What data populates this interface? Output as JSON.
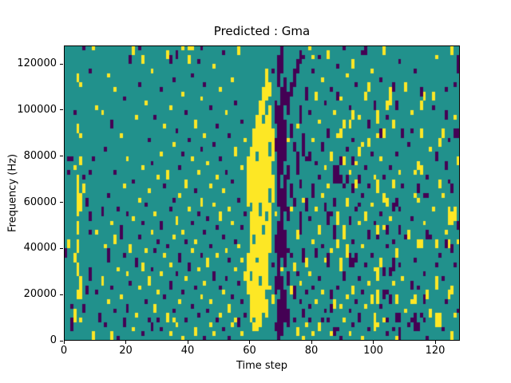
{
  "figure": {
    "title": "Predicted : Gma",
    "background": "#ffffff"
  },
  "chart_data": {
    "type": "heatmap",
    "title": "Predicted : Gma",
    "xlabel": "Time step",
    "ylabel": "Frequency (Hz)",
    "xlim": [
      0,
      128
    ],
    "ylim": [
      0,
      128000
    ],
    "xticks": [
      0,
      20,
      40,
      60,
      80,
      100,
      120
    ],
    "yticks": [
      0,
      20000,
      40000,
      60000,
      80000,
      100000,
      120000
    ],
    "grid_cols": 128,
    "grid_rows": 64,
    "legend": "none",
    "grid": false,
    "colormap_name": "viridis-3level",
    "colors": {
      "low": "#440154",
      "mid": "#21918c",
      "high": "#fde725"
    },
    "background_value": "mid",
    "run_format": "entries are [column, runs]; runs are 'r' or 'r1-r2' row spans (row 0 = top = 128000 Hz, row 63 = bottom = 0 Hz) followed by y (high/yellow) or p (low/purple); all other cells are mid/teal",
    "columns": [
      [
        0,
        "44-45p"
      ],
      [
        1,
        "24p 27p 42-43y"
      ],
      [
        2,
        "24p 56p 59-61p"
      ],
      [
        3,
        "14p 26y 45-46y 57-59y"
      ],
      [
        4,
        "6-7y 17-18y 28-36y 38-40y 42-44y 47-49y 53-54y"
      ],
      [
        5,
        "8y 19y 24-25y 32-35y 50-54y 59y"
      ],
      [
        6,
        "0p 28p 30-31y 56-57p"
      ],
      [
        7,
        "33-34p 52-53p"
      ],
      [
        8,
        "5p 27p 36-37p 40p 48-50p"
      ],
      [
        9,
        "0y 24p 62-63y"
      ],
      [
        10,
        "13y 40y 53p"
      ],
      [
        11,
        "58-59p"
      ],
      [
        12,
        "14y 35-36p 50-51y"
      ],
      [
        13,
        "22p 43y 60p"
      ],
      [
        14,
        "6y 32p 44-46p 55y"
      ],
      [
        15,
        "16-17p 38y 52p 62-63y"
      ],
      [
        16,
        "9y 27p 41-42y 57p"
      ],
      [
        17,
        "35p 48y 63p"
      ],
      [
        18,
        "19y 39-41p 54y"
      ],
      [
        19,
        "11p 30y 45p 59-60p"
      ],
      [
        20,
        "24y 36p 49y 56-57p"
      ],
      [
        21,
        "2-3p 43-44y 51p"
      ],
      [
        22,
        "0-1y 29p 37y 61y"
      ],
      [
        23,
        "15y 46-47p 58y"
      ],
      [
        24,
        "0p 8p 33y 41p 52y"
      ],
      [
        25,
        "2-3y 26y 38p 47-48y 62p"
      ],
      [
        26,
        "12y 34p 44y 55p"
      ],
      [
        27,
        "20p 31y 50-51y 59p"
      ],
      [
        28,
        "5y 25p 40y 48p 60-61p"
      ],
      [
        29,
        "15p 36y 44p 56-57y"
      ],
      [
        30,
        "28y 42p 53y 59p"
      ],
      [
        31,
        "9p 23y 38-39p 49y 61p"
      ],
      [
        32,
        "17y 30p 45y 54p"
      ],
      [
        33,
        "1-2y 27-28y 43p 58-59y"
      ],
      [
        34,
        "2-3p 13y 35p 47y 51-52p 62y"
      ],
      [
        35,
        "7p 21y 33p 41y 57p 59y"
      ],
      [
        36,
        "1-2p 18p 37-38y 49p 60y"
      ],
      [
        37,
        "26p 32y 45-46p 55y"
      ],
      [
        38,
        "0y 10y 23p 40y 53p 63y"
      ],
      [
        39,
        "14p 29-30y 42p 50y 59p"
      ],
      [
        40,
        "0y 2-3y 20p 35y 47-48p"
      ],
      [
        41,
        "0y 6p 24y 38p 44y 56p"
      ],
      [
        42,
        "16-17y 31p 42y 52p 61-62y"
      ],
      [
        43,
        "3p 27y 36p 48y 58p"
      ],
      [
        44,
        "0p 11y 22p 33-34y 45p 54y"
      ],
      [
        45,
        "8p 19y 40p 51y 63p"
      ],
      [
        46,
        "25y 37p 46-47y 57p"
      ],
      [
        47,
        "13p 30y 43p 55y 60y"
      ],
      [
        48,
        "4y 21p 34y 49-50p 62y"
      ],
      [
        49,
        "17p 28y 39p 45y 59p"
      ],
      [
        50,
        "9y 24p 36-37y 52p 58y"
      ],
      [
        51,
        "1p 31y 41p 53y 61p"
      ],
      [
        52,
        "14y 27p 44y 50p"
      ],
      [
        53,
        "19p 35y 46p 56-57y 63p"
      ],
      [
        54,
        "7y 29p 38y 54p 60y"
      ],
      [
        55,
        "12p 22-23y 42p 48y 59y"
      ],
      [
        56,
        "0-1y 33p 43y 51p 59-60p"
      ],
      [
        57,
        "16p 26y 39p 46y 55p 62y"
      ],
      [
        58,
        "20y 36p 49-50y 58p"
      ],
      [
        59,
        "24-34y 45-53y"
      ],
      [
        60,
        "22-33y 36-48y 51-59y"
      ],
      [
        61,
        "18-40y 43-58y 60-61y"
      ],
      [
        62,
        "15-22y 25-45y 47-61y"
      ],
      [
        63,
        "12-33y 37-49y 52-60y"
      ],
      [
        64,
        "9-14y 17-38y 41-57y"
      ],
      [
        65,
        "5-11y 15-35y 38-52y 55-58y"
      ],
      [
        66,
        "8-10y 13-20y 24-30y 34-44y 52y"
      ],
      [
        67,
        "5p 18-24y 28-33y 47p 54-55y"
      ],
      [
        68,
        "12-16p 20-22p 36y 41-44p 50-53p 60-61p"
      ],
      [
        69,
        "2-8p 13-34p 38-52p 55-63p"
      ],
      [
        70,
        "0-5p 9-27p 31-45p 48y 50-62p"
      ],
      [
        71,
        "7-12p 16-24p 28-35p 40-47p 53-59p"
      ],
      [
        72,
        "10-14p 20y 26-28p 35-37p 44p 49-51p 57-60p"
      ],
      [
        73,
        "8-10p 17-19p 30-32p 35y 45p 52-53y"
      ],
      [
        74,
        "5-8p 21-22p 33-34p 47-48y 52-54p 59p"
      ],
      [
        75,
        "3-5p 17y 23-27p 40-41y 49p 61-62y"
      ],
      [
        76,
        "1-3p 13-16p 29-30p 36-40p 51y 55p"
      ],
      [
        77,
        "2p 19-23p 33y 44-46p 57-58p 63y"
      ],
      [
        78,
        "9-11p 24p 33-35p 46-47y 53p 60y"
      ],
      [
        79,
        "0y 14p 23-24p 37p 49y 56p 59p"
      ],
      [
        80,
        "2y 5p 20y 30-32p 42y 52p 62y"
      ],
      [
        81,
        "10-11y 25p 35y 44-45p 55y"
      ],
      [
        82,
        "2p 16y 28p 39-40y 50p 60-61y"
      ],
      [
        83,
        "7y 21-22p 32y 43p 53y 59p"
      ],
      [
        84,
        "12p 26y 34-35p 46y 57p"
      ],
      [
        85,
        "1-2y 18-19p 30y 36-38p 45-47p 59p"
      ],
      [
        86,
        "9p 23-24y 36p 44y 53-54p 56-57p 62y"
      ],
      [
        87,
        "14y 26-29p 33-34p 39-41p 55-56y 61-62p"
      ],
      [
        88,
        "4p 10-11p 19y 26-29p 36-38y 42-43y 52p 61p"
      ],
      [
        89,
        "11y 18-19y 24-25p 28-29p 46-48y 56y 63p"
      ],
      [
        90,
        "0p 16-17y 24-25y 30p 39-41y 49-50p 59y"
      ],
      [
        91,
        "6y 22p 28-29p 33-34y 43-45y 54y"
      ],
      [
        92,
        "13p 16-17y 27y 37-38p 45-47p 57p 62y"
      ],
      [
        93,
        "3-4y 14-15y 20p 24-25p 30-31p 42p 46-47p 52-53y 60p"
      ],
      [
        94,
        "8p 25y 29-30y 35p 45-46p 55p"
      ],
      [
        95,
        "15y 22-23y 28-29p 34p 38y 50p 58-59p"
      ],
      [
        96,
        "1p 21y 32p 43y 53p 63y"
      ],
      [
        97,
        "0-1p 10-11y 26p 36-37y 47p 56y"
      ],
      [
        98,
        "8-9y 16-17p 20-21y 30p 40-41p 51y 61p"
      ],
      [
        99,
        "5y 23p 34y 45p 54-55y"
      ],
      [
        100,
        "12-13p 28y 38p 48y 58-61y"
      ],
      [
        101,
        "14-16y 19y 29-31y 39-40y 41p 48-50y 53-55y 60y"
      ],
      [
        102,
        "7p 18-19p 24y 36p 46-47y 56p"
      ],
      [
        103,
        "0-1y 18-19y 28p 32-33y 39y 48-49p 53-54p 59y"
      ],
      [
        104,
        "12-13y 15p 33-34y 39-40p 43p 53p 59p 62p"
      ],
      [
        105,
        "9-12y 26p 37y 48-49p 54-55p"
      ],
      [
        106,
        "8-9p 16-17y 29-30y 34-35p 42p 46-48p 51y 61p"
      ],
      [
        107,
        "12-13p 23p 33-34p 44-45y 54-55y 58-59p 63y"
      ],
      [
        108,
        "3p 27y 35p 39-40p 47p 58-59p 61-63p"
      ],
      [
        109,
        "18-19p 30p 50y"
      ],
      [
        110,
        "8-9y 41p 57y"
      ],
      [
        111,
        "21p 40-41y 60p"
      ],
      [
        112,
        "14y 18p 37p 51-52p 55y 59p"
      ],
      [
        113,
        "5p 27y 32y 46p 54-55y 58-61p"
      ],
      [
        114,
        "25-26y 30-31p 33y 42-43y 52p 60-61p"
      ],
      [
        115,
        "9-10p 12-13y 18-19y 26-27y 42-43y 58p"
      ],
      [
        116,
        "10-11y 32p 38y 49p 54-55p 59p"
      ],
      [
        117,
        "28p 32p 40-41p 53-54y 63p"
      ],
      [
        118,
        "22y 41p 57-58y"
      ],
      [
        119,
        "10-11y 13p 35y"
      ],
      [
        120,
        "2y 23-24p 42-43y 47p 50-52y 58-60y"
      ],
      [
        121,
        "20-21y 29-30y 45p 58-60y"
      ],
      [
        122,
        "18-19y 32y 50p 61p"
      ],
      [
        123,
        "9p 14-15p 25-26p 40y 42-43p 55p"
      ],
      [
        124,
        "20p 29p 35-38y 42-43y 53-54y"
      ],
      [
        125,
        "0-1y 30-31p 36-38y 43-44p 52-53y 62-63y"
      ],
      [
        126,
        "8p 15y 18-19p 35-37y 47p 58y"
      ],
      [
        127,
        "2-3p 4-5p 18-19p 24-25y 38-39p 42y 57p"
      ]
    ]
  }
}
